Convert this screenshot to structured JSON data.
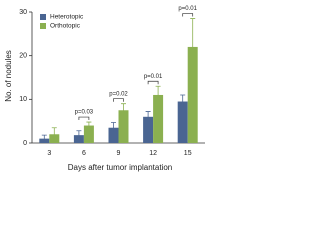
{
  "chart_data": {
    "type": "bar",
    "categories": [
      "3",
      "6",
      "9",
      "12",
      "15"
    ],
    "series": [
      {
        "name": "Heterotopic",
        "color": "#4a6592",
        "values": [
          1,
          1.8,
          3.5,
          6,
          9.5
        ],
        "errors": [
          0.8,
          1,
          1.2,
          1.2,
          1.5
        ]
      },
      {
        "name": "Orthotopic",
        "color": "#8bb050",
        "values": [
          2,
          4,
          7.5,
          11,
          22
        ],
        "errors": [
          1.5,
          0.8,
          1.5,
          2,
          6.5
        ]
      }
    ],
    "annotations": [
      null,
      "p=0.03",
      "p=0.02",
      "p=0.01",
      "p=0.01"
    ],
    "x_label": "Days after tumor implantation",
    "y_label": "No. of nodules",
    "ylim": [
      0,
      30
    ],
    "yticks": [
      0,
      10,
      20,
      30
    ],
    "legend": "upper-left"
  }
}
